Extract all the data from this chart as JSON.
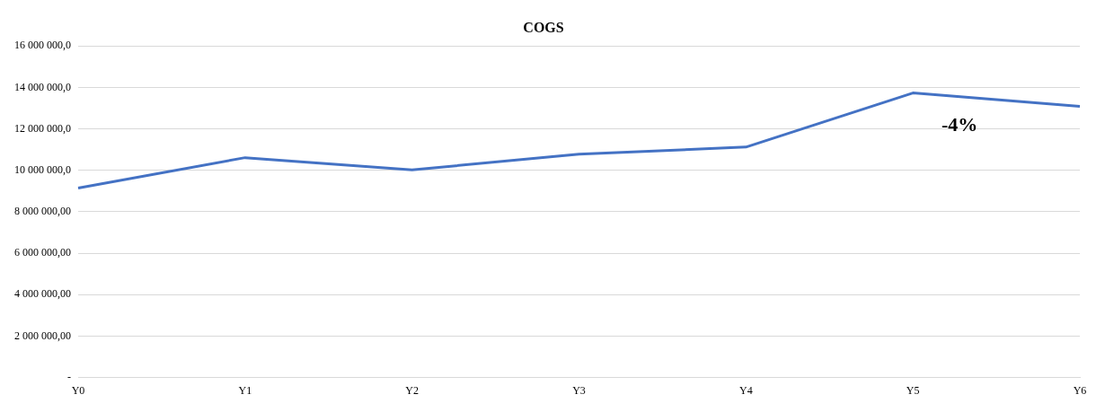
{
  "chart_data": {
    "type": "line",
    "title": "COGS",
    "categories": [
      "Y0",
      "Y1",
      "Y2",
      "Y3",
      "Y4",
      "Y5",
      "Y6"
    ],
    "series": [
      {
        "color": "#4472c4",
        "values": [
          9140000,
          10610000,
          10020000,
          10780000,
          11120000,
          13730000,
          13090000
        ]
      }
    ],
    "ylim": [
      0,
      16000000
    ],
    "yticks": [
      {
        "value": 0,
        "label": "-"
      },
      {
        "value": 2000000,
        "label": "2 000 000,00"
      },
      {
        "value": 4000000,
        "label": "4 000 000,00"
      },
      {
        "value": 6000000,
        "label": "6 000 000,00"
      },
      {
        "value": 8000000,
        "label": "8 000 000,00"
      },
      {
        "value": 10000000,
        "label": "10 000 000,0"
      },
      {
        "value": 12000000,
        "label": "12 000 000,0"
      },
      {
        "value": 14000000,
        "label": "14 000 000,0"
      },
      {
        "value": 16000000,
        "label": "16 000 000,0"
      }
    ],
    "annotations": [
      "-4%"
    ],
    "grid": "y",
    "legend": false,
    "marker": "none",
    "line_style": "solid"
  }
}
